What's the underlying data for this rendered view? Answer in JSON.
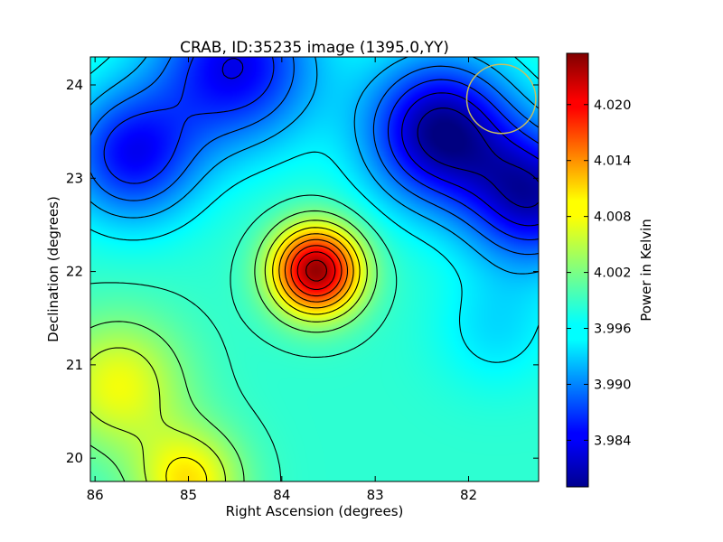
{
  "chart_data": {
    "type": "heatmap",
    "title": "CRAB, ID:35235 image (1395.0,YY)",
    "xlabel": "Right Ascension (degrees)",
    "ylabel": "Declination (degrees)",
    "xlim": [
      86.05,
      81.25
    ],
    "ylim": [
      19.75,
      24.3
    ],
    "x_ticks": [
      86,
      85,
      84,
      83,
      82
    ],
    "y_ticks": [
      20,
      21,
      22,
      23,
      24
    ],
    "grid": false,
    "colormap": "jet",
    "colorbar": {
      "label": "Power in Kelvin",
      "range": [
        3.979,
        4.0255
      ],
      "ticks": [
        "4.020",
        "4.014",
        "4.008",
        "4.002",
        "3.996",
        "3.990",
        "3.984"
      ]
    },
    "sources": [
      {
        "ra": 83.63,
        "dec": 22.01,
        "power": 4.0245,
        "sigma": 0.33
      },
      {
        "ra": 85.75,
        "dec": 20.78,
        "power": 4.0075,
        "sigma": 0.5
      },
      {
        "ra": 85.0,
        "dec": 19.75,
        "power": 4.009,
        "sigma": 0.4
      },
      {
        "ra": 82.3,
        "dec": 23.5,
        "power": 3.9795,
        "sigma": 0.55
      },
      {
        "ra": 81.3,
        "dec": 22.8,
        "power": 3.982,
        "sigma": 0.5
      },
      {
        "ra": 85.6,
        "dec": 23.25,
        "power": 3.985,
        "sigma": 0.5
      },
      {
        "ra": 84.5,
        "dec": 24.2,
        "power": 3.984,
        "sigma": 0.6
      },
      {
        "ra": 81.7,
        "dec": 21.4,
        "power": 3.995,
        "sigma": 0.45
      }
    ],
    "contour_levels": [
      3.981,
      3.984,
      3.987,
      3.99,
      3.993,
      3.996,
      3.999,
      4.002,
      4.005,
      4.008,
      4.011,
      4.014,
      4.017,
      4.02,
      4.023
    ],
    "beam_circle": {
      "ra": 81.65,
      "dec": 23.85,
      "radius_deg": 0.37,
      "color": "#c8c060"
    }
  }
}
